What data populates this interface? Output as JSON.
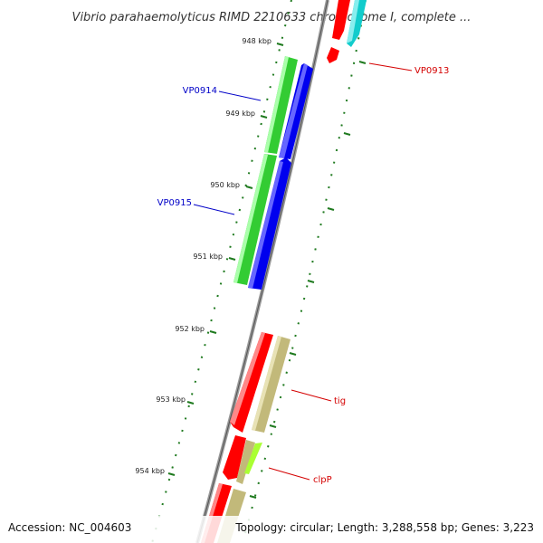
{
  "title": "Vibrio parahaemolyticus RIMD 2210633 chromosome I, complete ...",
  "footer": {
    "accession": "Accession: NC_004603",
    "summary": "Topology: circular; Length: 3,288,558 bp; Genes: 3,223"
  },
  "ticks": [
    "948 kbp",
    "949 kbp",
    "950 kbp",
    "951 kbp",
    "952 kbp",
    "953 kbp",
    "954 kbp"
  ],
  "gene_labels": [
    {
      "name": "VP0913",
      "color": "#d40000"
    },
    {
      "name": "VP0914",
      "color": "#0000c8"
    },
    {
      "name": "VP0915",
      "color": "#0000c8"
    },
    {
      "name": "tig",
      "color": "#d40000"
    },
    {
      "name": "clpP",
      "color": "#d40000"
    }
  ],
  "colors": {
    "backbone": "#8c8c8c",
    "tick": "#1f7a1f",
    "cds_red": "#ff0000",
    "cds_blue": "#0000ee",
    "cds_green": "#33cc33",
    "cds_cyan": "#11cccc",
    "cds_khaki": "#c2b97a",
    "cds_lime": "#aaff33"
  }
}
